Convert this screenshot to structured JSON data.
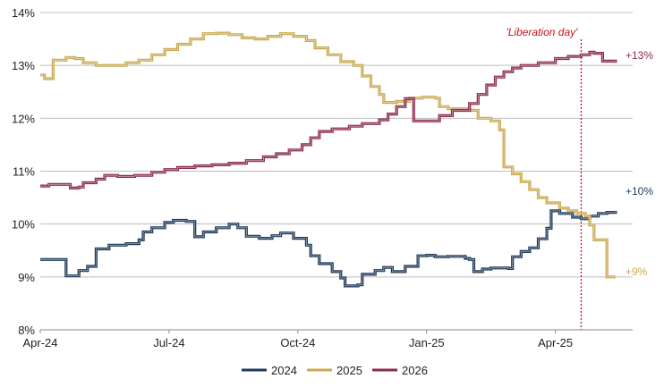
{
  "chart_data": {
    "type": "line",
    "title": "",
    "xlabel": "",
    "ylabel": "",
    "x_ticks": [
      "Apr-24",
      "Jul-24",
      "Oct-24",
      "Jan-25",
      "Apr-25"
    ],
    "y_ticks": [
      "8%",
      "9%",
      "10%",
      "11%",
      "12%",
      "13%",
      "14%"
    ],
    "ylim": [
      8,
      14
    ],
    "xlim_months": [
      0,
      13.8
    ],
    "grid": "horizontal",
    "legend_position": "bottom",
    "series": [
      {
        "name": "2024",
        "color": "#1f3a5a",
        "end_label": "+10%",
        "values": [
          [
            0.0,
            9.33
          ],
          [
            0.6,
            9.33
          ],
          [
            0.6,
            9.02
          ],
          [
            0.8,
            9.02
          ],
          [
            0.9,
            9.12
          ],
          [
            1.1,
            9.2
          ],
          [
            1.3,
            9.22
          ],
          [
            1.3,
            9.53
          ],
          [
            1.6,
            9.6
          ],
          [
            2.0,
            9.63
          ],
          [
            2.3,
            9.7
          ],
          [
            2.4,
            9.85
          ],
          [
            2.6,
            9.93
          ],
          [
            2.9,
            10.03
          ],
          [
            3.1,
            10.07
          ],
          [
            3.4,
            10.05
          ],
          [
            3.6,
            10.03
          ],
          [
            3.6,
            9.76
          ],
          [
            3.8,
            9.85
          ],
          [
            4.1,
            9.93
          ],
          [
            4.4,
            10.0
          ],
          [
            4.6,
            9.93
          ],
          [
            4.8,
            9.77
          ],
          [
            5.1,
            9.73
          ],
          [
            5.4,
            9.78
          ],
          [
            5.6,
            9.83
          ],
          [
            5.9,
            9.73
          ],
          [
            6.2,
            9.6
          ],
          [
            6.3,
            9.4
          ],
          [
            6.5,
            9.25
          ],
          [
            6.8,
            9.1
          ],
          [
            7.0,
            8.98
          ],
          [
            7.1,
            8.83
          ],
          [
            7.4,
            8.85
          ],
          [
            7.5,
            9.05
          ],
          [
            7.8,
            9.12
          ],
          [
            8.0,
            9.18
          ],
          [
            8.2,
            9.1
          ],
          [
            8.5,
            9.2
          ],
          [
            8.8,
            9.4
          ],
          [
            9.0,
            9.41
          ],
          [
            9.2,
            9.38
          ],
          [
            9.4,
            9.38
          ],
          [
            9.5,
            9.39
          ],
          [
            9.9,
            9.35
          ],
          [
            10.0,
            9.33
          ],
          [
            10.1,
            9.1
          ],
          [
            10.3,
            9.15
          ],
          [
            10.5,
            9.17
          ],
          [
            10.9,
            9.16
          ],
          [
            11.0,
            9.38
          ],
          [
            11.2,
            9.48
          ],
          [
            11.4,
            9.55
          ],
          [
            11.6,
            9.72
          ],
          [
            11.8,
            9.92
          ],
          [
            11.9,
            10.25
          ],
          [
            12.1,
            10.2
          ],
          [
            12.3,
            10.2
          ],
          [
            12.4,
            10.13
          ],
          [
            12.6,
            10.1
          ],
          [
            12.8,
            10.15
          ],
          [
            13.0,
            10.2
          ],
          [
            13.2,
            10.22
          ],
          [
            13.4,
            10.25
          ]
        ]
      },
      {
        "name": "2025",
        "color": "#c9a94f",
        "end_label": "+9%",
        "values": [
          [
            0.0,
            12.82
          ],
          [
            0.1,
            12.75
          ],
          [
            0.3,
            12.75
          ],
          [
            0.3,
            13.1
          ],
          [
            0.6,
            13.15
          ],
          [
            0.8,
            13.13
          ],
          [
            1.0,
            13.05
          ],
          [
            1.3,
            13.0
          ],
          [
            1.7,
            13.0
          ],
          [
            2.0,
            13.05
          ],
          [
            2.3,
            13.1
          ],
          [
            2.6,
            13.2
          ],
          [
            2.9,
            13.3
          ],
          [
            3.2,
            13.4
          ],
          [
            3.5,
            13.5
          ],
          [
            3.8,
            13.6
          ],
          [
            4.1,
            13.61
          ],
          [
            4.4,
            13.58
          ],
          [
            4.7,
            13.52
          ],
          [
            5.0,
            13.5
          ],
          [
            5.3,
            13.55
          ],
          [
            5.6,
            13.6
          ],
          [
            5.9,
            13.55
          ],
          [
            6.2,
            13.47
          ],
          [
            6.4,
            13.33
          ],
          [
            6.7,
            13.2
          ],
          [
            7.0,
            13.07
          ],
          [
            7.3,
            13.0
          ],
          [
            7.5,
            12.8
          ],
          [
            7.7,
            12.6
          ],
          [
            7.9,
            12.45
          ],
          [
            8.0,
            12.3
          ],
          [
            8.3,
            12.32
          ],
          [
            8.6,
            12.38
          ],
          [
            8.9,
            12.4
          ],
          [
            9.2,
            12.38
          ],
          [
            9.3,
            12.22
          ],
          [
            9.5,
            12.18
          ],
          [
            9.8,
            12.18
          ],
          [
            10.0,
            12.15
          ],
          [
            10.2,
            12.0
          ],
          [
            10.5,
            11.95
          ],
          [
            10.7,
            11.78
          ],
          [
            10.8,
            11.08
          ],
          [
            11.0,
            10.95
          ],
          [
            11.2,
            10.8
          ],
          [
            11.4,
            10.65
          ],
          [
            11.6,
            10.5
          ],
          [
            11.8,
            10.4
          ],
          [
            12.1,
            10.3
          ],
          [
            12.3,
            10.25
          ],
          [
            12.5,
            10.2
          ],
          [
            12.7,
            10.15
          ],
          [
            12.8,
            9.98
          ],
          [
            12.9,
            9.7
          ],
          [
            13.1,
            9.7
          ],
          [
            13.2,
            9.0
          ],
          [
            13.4,
            9.0
          ]
        ]
      },
      {
        "name": "2026",
        "color": "#8b2b4e",
        "end_label": "+13%",
        "values": [
          [
            0.0,
            10.72
          ],
          [
            0.2,
            10.75
          ],
          [
            0.6,
            10.75
          ],
          [
            0.7,
            10.68
          ],
          [
            0.9,
            10.7
          ],
          [
            1.0,
            10.78
          ],
          [
            1.3,
            10.85
          ],
          [
            1.5,
            10.92
          ],
          [
            1.8,
            10.9
          ],
          [
            2.2,
            10.92
          ],
          [
            2.6,
            10.98
          ],
          [
            2.9,
            11.03
          ],
          [
            3.2,
            11.07
          ],
          [
            3.6,
            11.1
          ],
          [
            4.0,
            11.12
          ],
          [
            4.4,
            11.15
          ],
          [
            4.8,
            11.2
          ],
          [
            5.2,
            11.27
          ],
          [
            5.5,
            11.33
          ],
          [
            5.8,
            11.4
          ],
          [
            6.1,
            11.5
          ],
          [
            6.3,
            11.63
          ],
          [
            6.5,
            11.75
          ],
          [
            6.8,
            11.8
          ],
          [
            7.2,
            11.85
          ],
          [
            7.5,
            11.9
          ],
          [
            7.9,
            11.97
          ],
          [
            8.1,
            12.08
          ],
          [
            8.3,
            12.22
          ],
          [
            8.5,
            12.37
          ],
          [
            8.6,
            12.37
          ],
          [
            8.7,
            11.95
          ],
          [
            9.0,
            11.95
          ],
          [
            9.3,
            12.05
          ],
          [
            9.6,
            12.15
          ],
          [
            9.8,
            12.15
          ],
          [
            10.0,
            12.28
          ],
          [
            10.2,
            12.45
          ],
          [
            10.4,
            12.63
          ],
          [
            10.6,
            12.78
          ],
          [
            10.8,
            12.88
          ],
          [
            11.0,
            12.95
          ],
          [
            11.2,
            13.0
          ],
          [
            11.6,
            13.05
          ],
          [
            12.0,
            13.13
          ],
          [
            12.3,
            13.17
          ],
          [
            12.6,
            13.2
          ],
          [
            12.8,
            13.25
          ],
          [
            12.9,
            13.23
          ],
          [
            13.1,
            13.08
          ],
          [
            13.4,
            13.05
          ]
        ]
      }
    ],
    "annotations": [
      {
        "text": "'Liberation day'",
        "x_month": 12.6,
        "color": "#c0151a",
        "style": "dotted-vertical-line"
      }
    ]
  }
}
